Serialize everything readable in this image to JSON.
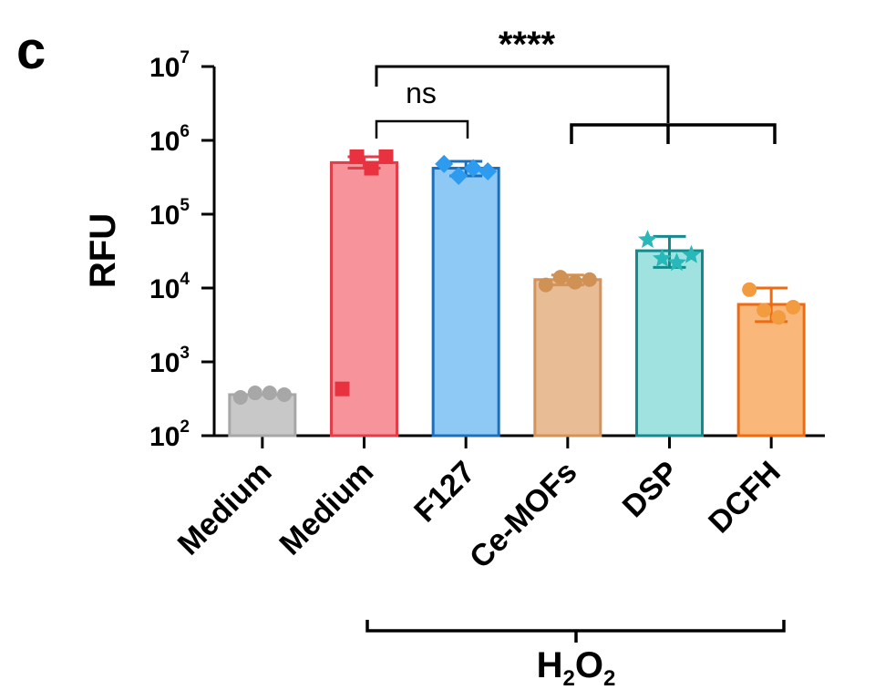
{
  "panel_label": "c",
  "colors": {
    "axis": "#000000",
    "bracket": "#000000"
  },
  "chart_data": {
    "type": "bar",
    "ylabel": "RFU",
    "yscale": "log",
    "ylim": [
      100,
      10000000
    ],
    "ytick_base": "10",
    "yticks": [
      {
        "value": 100,
        "exp": "2"
      },
      {
        "value": 1000,
        "exp": "3"
      },
      {
        "value": 10000,
        "exp": "4"
      },
      {
        "value": 100000,
        "exp": "5"
      },
      {
        "value": 1000000,
        "exp": "6"
      },
      {
        "value": 10000000,
        "exp": "7"
      }
    ],
    "categories": [
      "Medium",
      "Medium",
      "F127",
      "Ce-MOFs",
      "DSP",
      "DCFH"
    ],
    "values": [
      360,
      500000,
      420000,
      13000,
      32000,
      6000
    ],
    "error_high": [
      null,
      600000,
      520000,
      15000,
      50000,
      10000
    ],
    "error_low": [
      null,
      420000,
      330000,
      11000,
      19000,
      3500
    ],
    "points": [
      [
        330,
        380,
        380,
        360
      ],
      [
        430,
        600000,
        420000,
        600000
      ],
      [
        480000,
        330000,
        420000,
        380000
      ],
      [
        11000,
        14000,
        12000,
        13000
      ],
      [
        45000,
        25000,
        22000,
        28000
      ],
      [
        9500,
        5000,
        4000,
        5500
      ]
    ],
    "bar_colors": [
      "#c8c8c8",
      "#f7939b",
      "#8ec9f5",
      "#e8bc94",
      "#9fe2df",
      "#f9b77a"
    ],
    "edge_colors": [
      "#a7a7a7",
      "#e23d48",
      "#1e6fba",
      "#d39359",
      "#158a8c",
      "#f26a10"
    ],
    "point_markers": [
      "circle",
      "square",
      "diamond",
      "circle",
      "star",
      "circle"
    ],
    "point_colors": [
      "#a7a7a7",
      "#e8323f",
      "#2d9bf0",
      "#cf9154",
      "#29b8b9",
      "#f29b3f"
    ],
    "significance": {
      "ns_label": "ns",
      "stars_label": "****"
    },
    "group_bracket": {
      "label": "H",
      "subscript": "2",
      "label_tail": "O",
      "subscript_tail": "2"
    }
  }
}
